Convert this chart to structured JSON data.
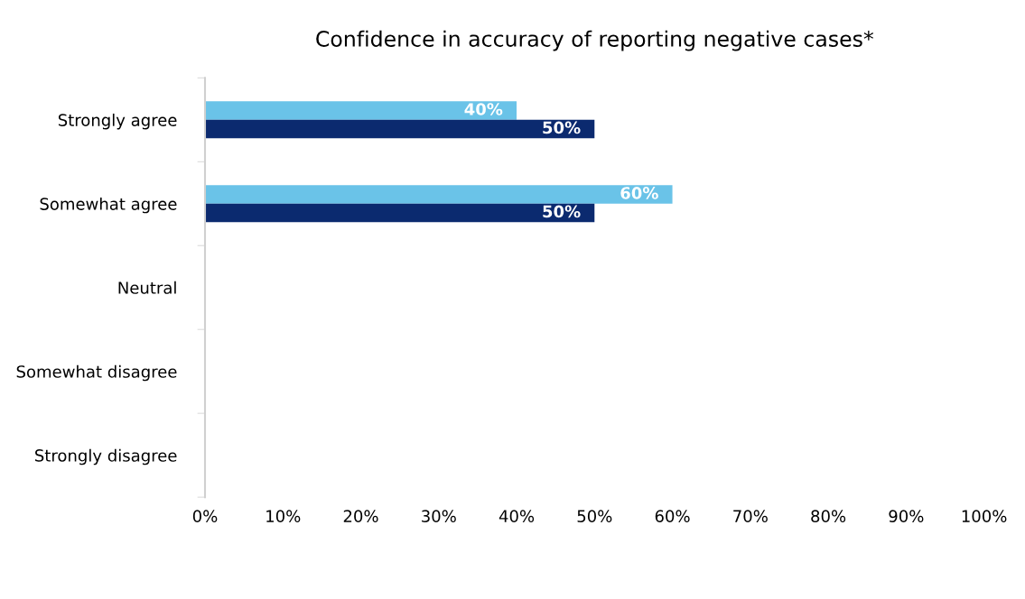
{
  "chart_data": {
    "type": "bar",
    "orientation": "horizontal",
    "title": "Confidence in accuracy of reporting negative cases*",
    "categories": [
      "Strongly agree",
      "Somewhat agree",
      "Neutral",
      "Somewhat disagree",
      "Strongly disagree"
    ],
    "series": [
      {
        "color": "#6ac3e8",
        "values": [
          40,
          60,
          null,
          null,
          null
        ],
        "value_labels": [
          "40%",
          "60%",
          null,
          null,
          null
        ]
      },
      {
        "color": "#0b2a6f",
        "values": [
          50,
          50,
          null,
          null,
          null
        ],
        "value_labels": [
          "50%",
          "50%",
          null,
          null,
          null
        ]
      }
    ],
    "xlim": [
      0,
      100
    ],
    "xticks": [
      {
        "value": 0,
        "label": "0%"
      },
      {
        "value": 10,
        "label": "10%"
      },
      {
        "value": 20,
        "label": "20%"
      },
      {
        "value": 30,
        "label": "30%"
      },
      {
        "value": 40,
        "label": "40%"
      },
      {
        "value": 50,
        "label": "50%"
      },
      {
        "value": 60,
        "label": "60%"
      },
      {
        "value": 70,
        "label": "70%"
      },
      {
        "value": 80,
        "label": "80%"
      },
      {
        "value": 90,
        "label": "90%"
      },
      {
        "value": 100,
        "label": "100%"
      }
    ],
    "grid": false
  }
}
